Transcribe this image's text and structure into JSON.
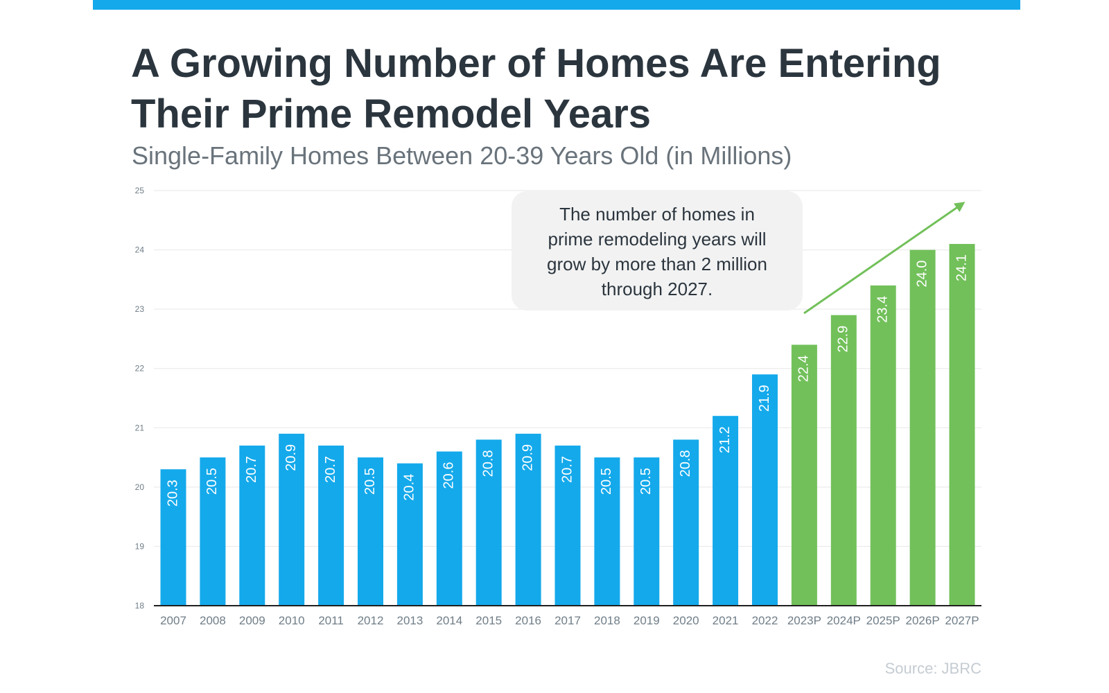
{
  "header": {
    "title_line1": "A Growing Number of Homes Are Entering",
    "title_line2": "Their Prime Remodel Years",
    "subtitle": "Single-Family Homes Between 20-39 Years Old (in Millions)"
  },
  "annotation": {
    "lines": [
      "The number of homes in",
      "prime remodeling years will",
      "grow by more than 2 million",
      "through 2027."
    ]
  },
  "source": "Source: JBRC",
  "colors": {
    "top_bar": "#14a9eb",
    "historical": "#14a9eb",
    "projected": "#72c05a",
    "arrow": "#72c05a",
    "callout": "#f2f2f2",
    "title": "#2b353e",
    "subtitle": "#69737b",
    "axis_text": "#6f7d87",
    "source": "#c5ccd2"
  },
  "chart_data": {
    "type": "bar",
    "title": "A Growing Number of Homes Are Entering Their Prime Remodel Years",
    "subtitle": "Single-Family Homes Between 20-39 Years Old (in Millions)",
    "categories": [
      "2007",
      "2008",
      "2009",
      "2010",
      "2011",
      "2012",
      "2013",
      "2014",
      "2015",
      "2016",
      "2017",
      "2018",
      "2019",
      "2020",
      "2021",
      "2022",
      "2023P",
      "2024P",
      "2025P",
      "2026P",
      "2027P"
    ],
    "values": [
      20.3,
      20.5,
      20.7,
      20.9,
      20.7,
      20.5,
      20.4,
      20.6,
      20.8,
      20.9,
      20.7,
      20.5,
      20.5,
      20.8,
      21.2,
      21.9,
      22.4,
      22.9,
      23.4,
      24.0,
      24.1
    ],
    "value_labels": [
      "20.3",
      "20.5",
      "20.7",
      "20.9",
      "20.7",
      "20.5",
      "20.4",
      "20.6",
      "20.8",
      "20.9",
      "20.7",
      "20.5",
      "20.5",
      "20.8",
      "21.2",
      "21.9",
      "22.4",
      "22.9",
      "23.4",
      "24.0",
      "24.1"
    ],
    "projected": [
      false,
      false,
      false,
      false,
      false,
      false,
      false,
      false,
      false,
      false,
      false,
      false,
      false,
      false,
      false,
      false,
      true,
      true,
      true,
      true,
      true
    ],
    "y_ticks": [
      "18",
      "19",
      "20",
      "21",
      "22",
      "23",
      "24",
      "25"
    ],
    "ylim": [
      18,
      25
    ],
    "xlabel": "",
    "ylabel": "",
    "grid": true
  }
}
